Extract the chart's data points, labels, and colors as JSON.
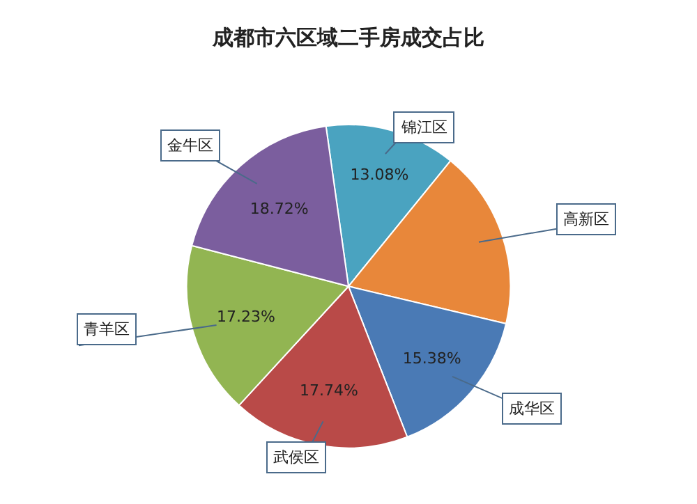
{
  "chart_data": {
    "type": "pie",
    "title": "成都市六区域二手房成交占比",
    "categories": [
      "锦江区",
      "高新区",
      "成华区",
      "武侯区",
      "青羊区",
      "金牛区"
    ],
    "values": [
      13.08,
      17.85,
      15.38,
      17.74,
      17.23,
      18.72
    ],
    "value_labels": [
      "13.08%",
      null,
      "15.38%",
      "17.74%",
      "17.23%",
      "18.72%"
    ],
    "colors": [
      "#4aa3c0",
      "#e8873a",
      "#4a7ab5",
      "#b94a48",
      "#92b552",
      "#7b5e9e"
    ],
    "legend": false
  }
}
